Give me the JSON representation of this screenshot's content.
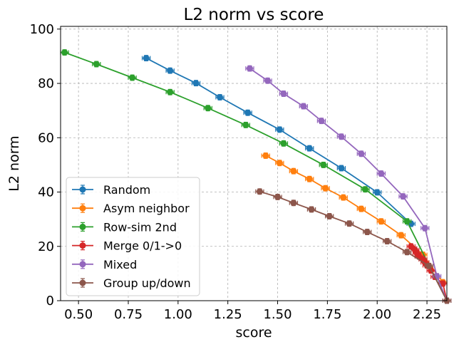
{
  "chart_data": {
    "type": "line",
    "title": "L2 norm vs score",
    "xlabel": "score",
    "ylabel": "L2 norm",
    "xlim": [
      0.41,
      2.35
    ],
    "ylim": [
      0,
      101
    ],
    "xticks": [
      0.5,
      0.75,
      1.0,
      1.25,
      1.5,
      1.75,
      2.0,
      2.25
    ],
    "xtick_labels": [
      "0.50",
      "0.75",
      "1.00",
      "1.25",
      "1.50",
      "1.75",
      "2.00",
      "2.25"
    ],
    "yticks": [
      0,
      20,
      40,
      60,
      80,
      100
    ],
    "ytick_labels": [
      "0",
      "20",
      "40",
      "60",
      "80",
      "100"
    ],
    "grid": true,
    "legend_position": "lower-left",
    "series": [
      {
        "name": "Random",
        "color": "#1f77b4",
        "x": [
          0.84,
          0.96,
          1.09,
          1.21,
          1.35,
          1.51,
          1.66,
          1.82,
          2.0,
          2.17
        ],
        "y": [
          89.3,
          84.7,
          80.1,
          74.9,
          69.2,
          63.0,
          56.1,
          48.8,
          39.9,
          28.3
        ]
      },
      {
        "name": "Asym neighbor",
        "color": "#ff7f0e",
        "x": [
          1.44,
          1.51,
          1.58,
          1.66,
          1.74,
          1.83,
          1.92,
          2.02,
          2.12,
          2.23,
          2.33
        ],
        "y": [
          53.4,
          50.7,
          47.7,
          44.8,
          41.4,
          38.0,
          33.8,
          29.2,
          24.1,
          16.9,
          6.8
        ]
      },
      {
        "name": "Row-sim 2nd",
        "color": "#2ca02c",
        "x": [
          0.43,
          0.59,
          0.77,
          0.96,
          1.15,
          1.34,
          1.53,
          1.73,
          1.94,
          2.15,
          2.35
        ],
        "y": [
          91.4,
          87.1,
          82.1,
          76.8,
          70.9,
          64.7,
          57.9,
          50.0,
          41.0,
          29.2,
          0.0
        ]
      },
      {
        "name": "Merge 0/1->0",
        "color": "#d62728",
        "x": [
          2.17,
          2.19,
          2.2,
          2.21,
          2.23,
          2.24,
          2.25,
          2.27,
          2.29,
          2.33,
          2.35
        ],
        "y": [
          20.0,
          18.7,
          17.4,
          16.3,
          15.2,
          14.1,
          13.0,
          11.1,
          8.8,
          6.3,
          0.0
        ]
      },
      {
        "name": "Mixed",
        "color": "#9467bd",
        "x": [
          1.36,
          1.45,
          1.53,
          1.63,
          1.72,
          1.82,
          1.92,
          2.02,
          2.13,
          2.24,
          2.3,
          2.35
        ],
        "y": [
          85.5,
          81.0,
          76.2,
          71.6,
          66.2,
          60.4,
          54.1,
          46.8,
          38.4,
          26.7,
          9.0,
          0.0
        ]
      },
      {
        "name": "Group up/down",
        "color": "#8c564b",
        "x": [
          1.41,
          1.5,
          1.58,
          1.67,
          1.76,
          1.86,
          1.95,
          2.05,
          2.15,
          2.26,
          2.35
        ],
        "y": [
          40.2,
          38.2,
          36.0,
          33.6,
          31.1,
          28.4,
          25.3,
          21.9,
          17.9,
          12.8,
          0.0
        ]
      }
    ]
  }
}
